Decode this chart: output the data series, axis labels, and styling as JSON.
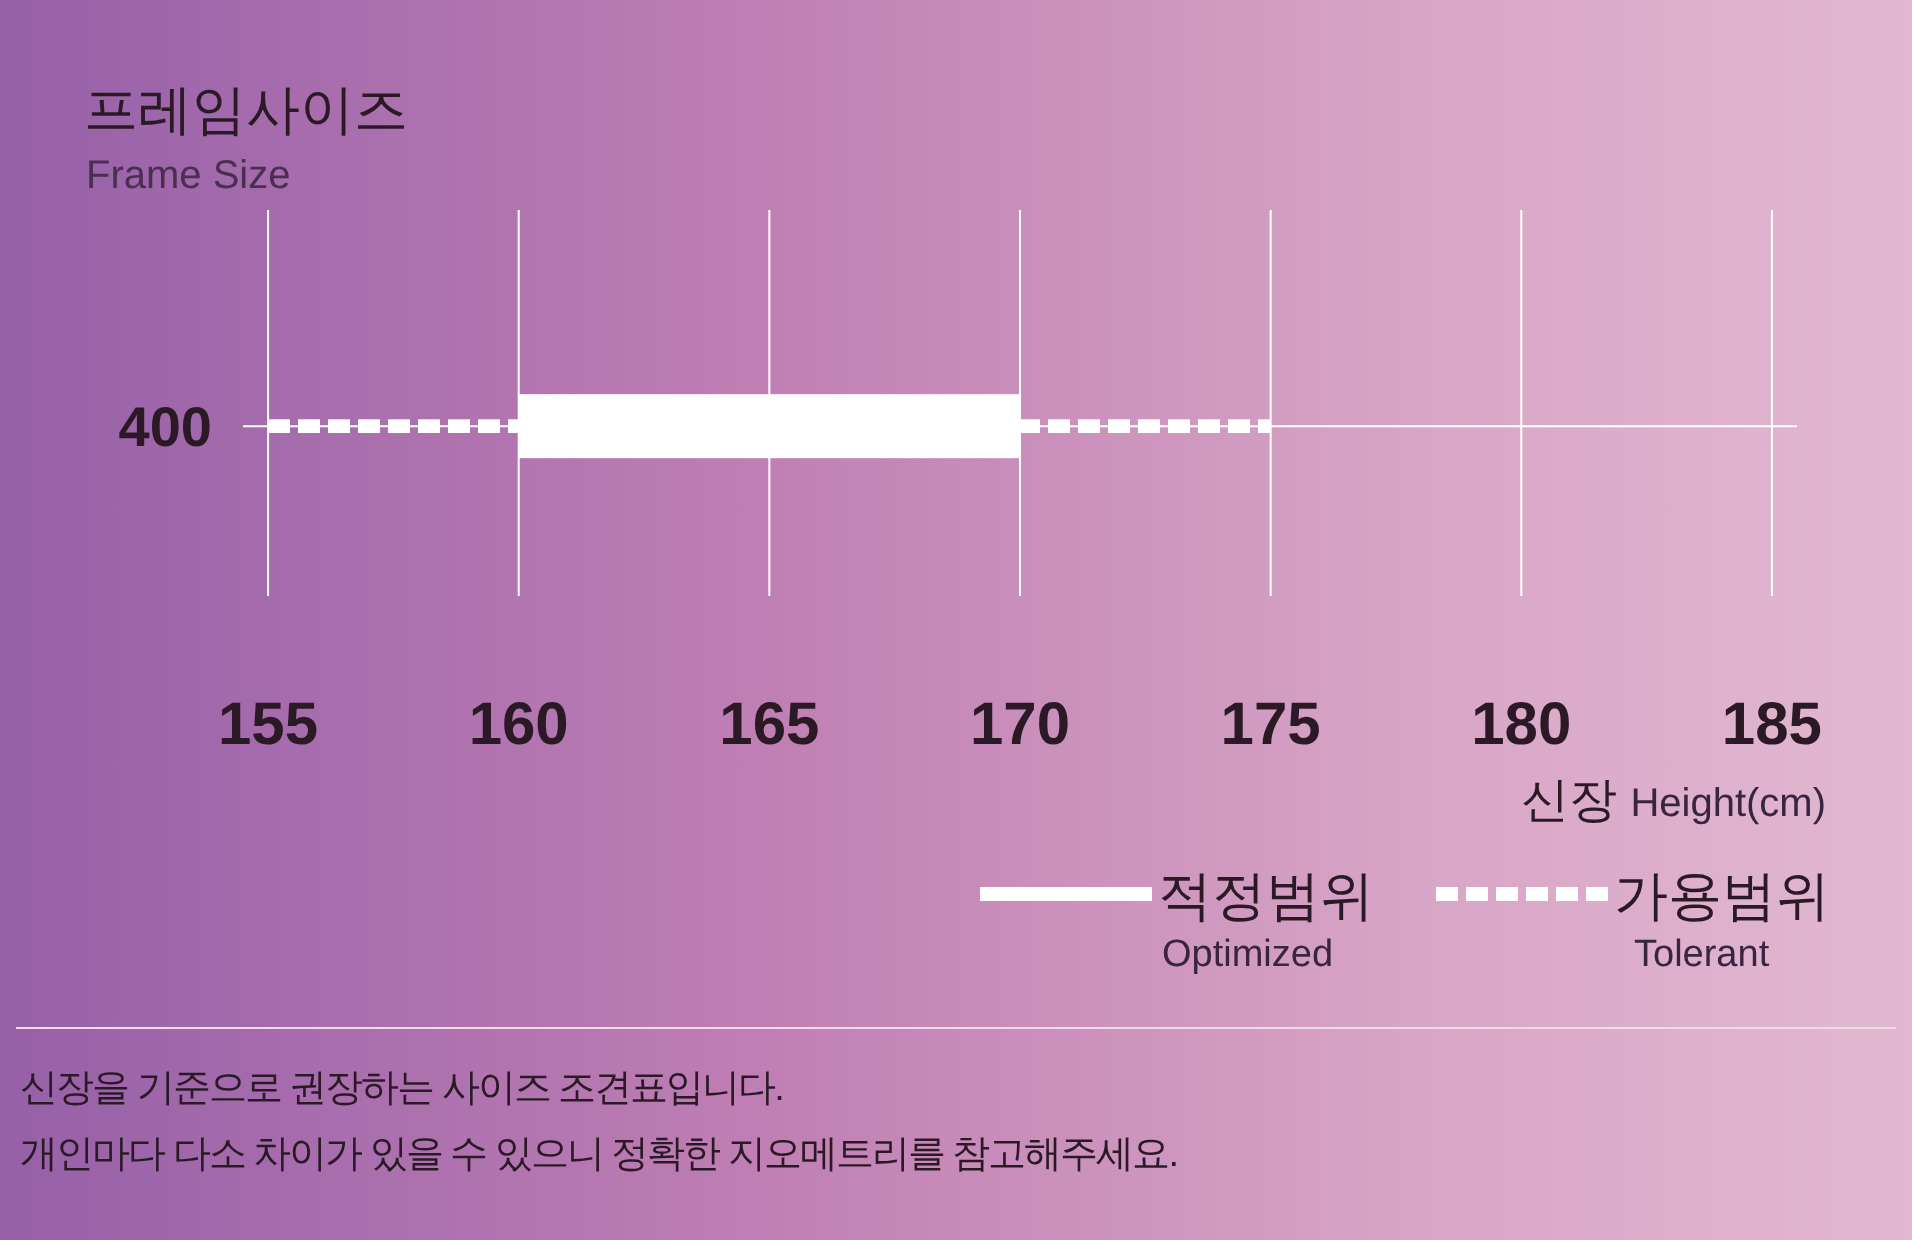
{
  "chart_data": {
    "type": "bar",
    "orientation": "horizontal",
    "title": "프레임사이즈",
    "subtitle": "Frame Size",
    "xlabel": "신장 Height(cm)",
    "categories": [
      "400"
    ],
    "series": [
      {
        "name": "가용범위 Tolerant",
        "color": "#ffffff",
        "line_style": "dashed",
        "base": [
          155
        ],
        "values": [
          20
        ]
      },
      {
        "name": "적정범위 Optimized",
        "color": "#ffffff",
        "line_style": "solid",
        "base": [
          160
        ],
        "values": [
          10
        ]
      }
    ],
    "xlim": [
      154.5,
      185.5
    ],
    "xticks": [
      155,
      160,
      165,
      170,
      175,
      180,
      185
    ],
    "grid": "x",
    "legend": "bottom right",
    "annotations": [
      "신장을 기준으로 권장하는 사이즈 조견표입니다.",
      "개인마다 다소 차이가 있을 수 있으니 정확한 지오메트리를 참고해주세요."
    ]
  }
}
